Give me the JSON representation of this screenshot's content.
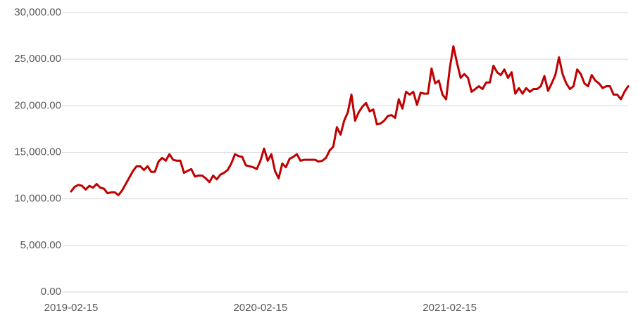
{
  "chart_data": {
    "type": "line",
    "categories": [
      "2019-02-15",
      null,
      null,
      null,
      null,
      null,
      null,
      null,
      null,
      null,
      null,
      null,
      null,
      null,
      null,
      null,
      null,
      null,
      null,
      null,
      null,
      null,
      null,
      null,
      null,
      null,
      null,
      null,
      null,
      null,
      null,
      null,
      null,
      null,
      null,
      null,
      null,
      null,
      null,
      null,
      null,
      null,
      null,
      null,
      null,
      null,
      null,
      null,
      null,
      null,
      null,
      null,
      "2020-02-15",
      null,
      null,
      null,
      null,
      null,
      null,
      null,
      null,
      null,
      null,
      null,
      null,
      null,
      null,
      null,
      null,
      null,
      null,
      null,
      null,
      null,
      null,
      null,
      null,
      null,
      null,
      null,
      null,
      null,
      null,
      null,
      null,
      null,
      null,
      null,
      null,
      null,
      null,
      null,
      null,
      null,
      null,
      null,
      null,
      null,
      null,
      null,
      null,
      null,
      null,
      null,
      "2021-02-15",
      null,
      null,
      null,
      null,
      null,
      null,
      null,
      null,
      null,
      null,
      null,
      null,
      null,
      null,
      null,
      null,
      null,
      null,
      null,
      null,
      null,
      null,
      null,
      null,
      null,
      null,
      null,
      null,
      null,
      null,
      null,
      null,
      null,
      null,
      null,
      null,
      null,
      null,
      null,
      null,
      null,
      null,
      null,
      null,
      null,
      null,
      null,
      null,
      null
    ],
    "series": [
      {
        "color": "#c00000",
        "values": [
          10800,
          11300,
          11500,
          11400,
          11000,
          11400,
          11200,
          11600,
          11200,
          11100,
          10600,
          10700,
          10700,
          10400,
          10900,
          11600,
          12300,
          13000,
          13500,
          13500,
          13100,
          13500,
          12900,
          12900,
          14000,
          14400,
          14100,
          14800,
          14200,
          14100,
          14100,
          12800,
          13000,
          13200,
          12400,
          12500,
          12500,
          12200,
          11800,
          12500,
          12100,
          12600,
          12800,
          13100,
          13800,
          14800,
          14600,
          14500,
          13600,
          13500,
          13400,
          13200,
          14100,
          15400,
          14100,
          14800,
          13000,
          12200,
          13800,
          13400,
          14300,
          14500,
          14800,
          14100,
          14200,
          14200,
          14200,
          14200,
          14000,
          14100,
          14400,
          15200,
          15600,
          17700,
          16900,
          18400,
          19300,
          21200,
          18400,
          19300,
          19900,
          20300,
          19400,
          19600,
          18000,
          18100,
          18400,
          18900,
          19000,
          18700,
          20700,
          19700,
          21500,
          21200,
          21500,
          20100,
          21400,
          21300,
          21300,
          24000,
          22400,
          22700,
          21200,
          20700,
          24000,
          26400,
          24600,
          23000,
          23400,
          23000,
          21500,
          21800,
          22100,
          21800,
          22500,
          22500,
          24300,
          23600,
          23300,
          23900,
          23000,
          23600,
          21300,
          21900,
          21300,
          21900,
          21500,
          21800,
          21800,
          22100,
          23200,
          21600,
          22400,
          23300,
          25200,
          23400,
          22400,
          21800,
          22100,
          23900,
          23400,
          22400,
          22100,
          23300,
          22700,
          22400,
          21900,
          22100,
          22100,
          21200,
          21200,
          20700,
          21500,
          22100
        ]
      }
    ],
    "ylim": [
      0,
      30000
    ],
    "yticks": [
      {
        "value": 0,
        "label": "0.00"
      },
      {
        "value": 5000,
        "label": "5,000.00"
      },
      {
        "value": 10000,
        "label": "10,000.00"
      },
      {
        "value": 15000,
        "label": "15,000.00"
      },
      {
        "value": 20000,
        "label": "20,000.00"
      },
      {
        "value": 25000,
        "label": "25,000.00"
      },
      {
        "value": 30000,
        "label": "30,000.00"
      }
    ],
    "grid": true
  }
}
